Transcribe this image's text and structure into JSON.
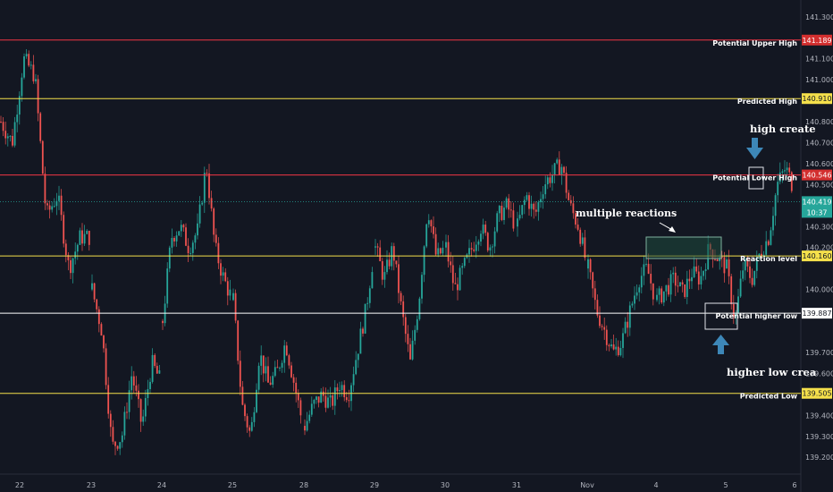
{
  "chart_data": {
    "type": "candlestick",
    "ylim": [
      139.12,
      141.38
    ],
    "y_ticks": [
      "141.300",
      "141.100",
      "141.000",
      "140.800",
      "140.700",
      "140.600",
      "140.500",
      "140.300",
      "140.200",
      "140.000",
      "139.700",
      "139.600",
      "139.400",
      "139.300",
      "139.200"
    ],
    "y_tick_values": [
      141.3,
      141.1,
      141.0,
      140.8,
      140.7,
      140.6,
      140.5,
      140.3,
      140.2,
      140.0,
      139.7,
      139.6,
      139.4,
      139.3,
      139.2
    ],
    "x_ticks": [
      "22",
      "23",
      "24",
      "25",
      "28",
      "29",
      "30",
      "31",
      "Nov",
      "4",
      "5",
      "6"
    ],
    "grid": false,
    "levels": [
      {
        "label": "Potential Upper High",
        "tag": "141.189",
        "value": 141.189,
        "color": "#f23645"
      },
      {
        "label": "Predicted High",
        "tag": "140.910",
        "value": 140.91,
        "color": "#f5e04b"
      },
      {
        "label": "Potential Lower High",
        "tag": "140.546",
        "value": 140.546,
        "color": "#f23645"
      },
      {
        "label": "Reaction level",
        "tag": "140.160",
        "value": 140.16,
        "color": "#f5e04b"
      },
      {
        "label": "Potential higher low",
        "tag": "139.887",
        "value": 139.887,
        "color": "#ffffff"
      },
      {
        "label": "Predicted Low",
        "tag": "139.505",
        "value": 139.505,
        "color": "#f5e04b"
      }
    ],
    "current_price": {
      "tag": "140.419",
      "countdown": "10:37",
      "value": 140.419,
      "color": "#26a69a"
    },
    "annotations": [
      "high create",
      "multiple reactions",
      "higher low crea"
    ],
    "colors": {
      "up": "#26a69a",
      "down": "#ef5350",
      "background": "#131722"
    },
    "series": [
      {
        "day": "22",
        "points": [
          140.8,
          140.7,
          141.1,
          141.02,
          140.35,
          140.45,
          140.1,
          140.25,
          140.25
        ]
      },
      {
        "day": "23",
        "points": [
          140.0,
          139.8,
          139.25,
          139.3,
          139.6,
          139.35,
          139.65,
          139.55
        ]
      },
      {
        "day": "24",
        "points": [
          139.85,
          140.25,
          140.3,
          140.2,
          140.28,
          140.6,
          140.2,
          140.05,
          139.95
        ]
      },
      {
        "day": "25",
        "points": [
          139.95,
          139.45,
          139.3,
          139.7,
          139.55,
          139.6,
          139.75,
          139.55,
          139.35
        ]
      },
      {
        "day": "28",
        "points": [
          139.35,
          139.45,
          139.5,
          139.45,
          139.55,
          139.5,
          139.7,
          139.9,
          140.2
        ]
      },
      {
        "day": "29",
        "points": [
          140.2,
          140.05,
          140.2,
          139.9,
          139.65,
          139.95,
          140.4,
          140.15,
          140.2
        ]
      },
      {
        "day": "30",
        "points": [
          140.2,
          140.0,
          140.1,
          140.2,
          140.3,
          140.2,
          140.35,
          140.4,
          140.3
        ]
      },
      {
        "day": "31",
        "points": [
          140.3,
          140.45,
          140.35,
          140.5,
          140.55,
          140.6,
          140.4,
          140.3,
          140.1
        ]
      },
      {
        "day": "Nov",
        "points": [
          140.1,
          139.9,
          139.8,
          139.7,
          139.75,
          139.9,
          140.05,
          140.1,
          139.95
        ]
      },
      {
        "day": "4",
        "points": [
          139.95,
          140.0,
          140.05,
          139.98,
          140.08,
          140.05,
          140.2,
          140.15,
          140.1
        ]
      },
      {
        "day": "5",
        "points": [
          140.1,
          139.85,
          140.12,
          140.05,
          140.18,
          140.25,
          140.5,
          140.58,
          140.48
        ]
      },
      {
        "day": "6",
        "points": [
          140.48,
          140.38
        ]
      }
    ]
  }
}
